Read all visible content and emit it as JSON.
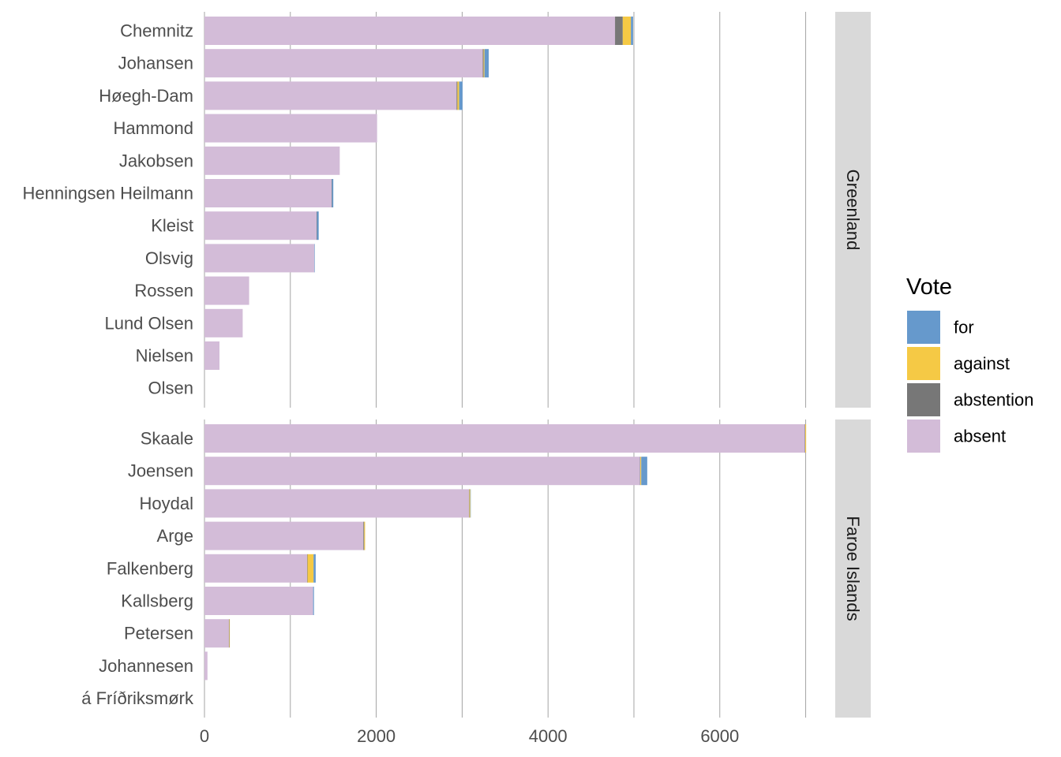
{
  "chart_data": {
    "type": "bar",
    "orientation": "horizontal",
    "stacked": true,
    "xlim": [
      0,
      7200
    ],
    "x_ticks": [
      0,
      2000,
      4000,
      6000
    ],
    "gridlines": [
      0,
      1000,
      2000,
      3000,
      4000,
      5000,
      6000,
      7000
    ],
    "legend": {
      "title": "Vote",
      "position": "right",
      "entries": [
        {
          "key": "for",
          "label": "for",
          "color": "#6699CC"
        },
        {
          "key": "against",
          "label": "against",
          "color": "#F5C945"
        },
        {
          "key": "abstention",
          "label": "abstention",
          "color": "#777777"
        },
        {
          "key": "absent",
          "label": "absent",
          "color": "#D3BCD8"
        }
      ]
    },
    "stack_order": [
      "absent",
      "abstention",
      "against",
      "for"
    ],
    "panels": [
      {
        "strip": "Greenland",
        "categories": [
          "Chemnitz",
          "Johansen",
          "Høegh-Dam",
          "Hammond",
          "Jakobsen",
          "Henningsen Heilmann",
          "Kleist",
          "Olsvig",
          "Rossen",
          "Lund Olsen",
          "Nielsen",
          "Olsen"
        ],
        "series": [
          {
            "key": "absent",
            "values": [
              4780,
              3240,
              2935,
              2010,
              1575,
              1480,
              1305,
              1280,
              520,
              445,
              175,
              0
            ]
          },
          {
            "key": "abstention",
            "values": [
              90,
              10,
              10,
              0,
              0,
              5,
              5,
              0,
              0,
              0,
              0,
              0
            ]
          },
          {
            "key": "against",
            "values": [
              95,
              10,
              20,
              0,
              0,
              0,
              0,
              0,
              0,
              0,
              0,
              0
            ]
          },
          {
            "key": "for",
            "values": [
              25,
              50,
              40,
              0,
              0,
              15,
              20,
              5,
              0,
              0,
              0,
              0
            ]
          }
        ]
      },
      {
        "strip": "Faroe Islands",
        "categories": [
          "Skaale",
          "Joensen",
          "Hoydal",
          "Arge",
          "Falkenberg",
          "Kallsberg",
          "Petersen",
          "Johannesen",
          "á Fríðriksmørk"
        ],
        "series": [
          {
            "key": "absent",
            "values": [
              6990,
              5070,
              3080,
              1850,
              1195,
              1265,
              285,
              35,
              0
            ]
          },
          {
            "key": "abstention",
            "values": [
              5,
              5,
              5,
              10,
              5,
              0,
              5,
              0,
              0
            ]
          },
          {
            "key": "against",
            "values": [
              10,
              10,
              10,
              10,
              70,
              0,
              5,
              0,
              0
            ]
          },
          {
            "key": "for",
            "values": [
              0,
              70,
              5,
              0,
              25,
              10,
              0,
              0,
              0
            ]
          }
        ]
      }
    ]
  }
}
